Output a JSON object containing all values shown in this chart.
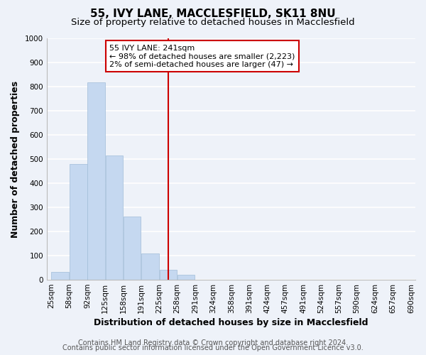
{
  "title": "55, IVY LANE, MACCLESFIELD, SK11 8NU",
  "subtitle": "Size of property relative to detached houses in Macclesfield",
  "xlabel": "Distribution of detached houses by size in Macclesfield",
  "ylabel": "Number of detached properties",
  "bar_edges": [
    25,
    58,
    92,
    125,
    158,
    191,
    225,
    258,
    291,
    324,
    358,
    391,
    424,
    457,
    491,
    524,
    557,
    590,
    624,
    657,
    690
  ],
  "bar_heights": [
    33,
    480,
    818,
    516,
    263,
    110,
    40,
    20,
    0,
    0,
    0,
    0,
    0,
    0,
    0,
    0,
    0,
    0,
    0,
    0
  ],
  "bar_color": "#c5d8f0",
  "bar_edge_color": "#a0bcd8",
  "vline_x": 241,
  "vline_color": "#cc0000",
  "annotation_title": "55 IVY LANE: 241sqm",
  "annotation_line1": "← 98% of detached houses are smaller (2,223)",
  "annotation_line2": "2% of semi-detached houses are larger (47) →",
  "ylim": [
    0,
    1000
  ],
  "yticks": [
    0,
    100,
    200,
    300,
    400,
    500,
    600,
    700,
    800,
    900,
    1000
  ],
  "tick_labels": [
    "25sqm",
    "58sqm",
    "92sqm",
    "125sqm",
    "158sqm",
    "191sqm",
    "225sqm",
    "258sqm",
    "291sqm",
    "324sqm",
    "358sqm",
    "391sqm",
    "424sqm",
    "457sqm",
    "491sqm",
    "524sqm",
    "557sqm",
    "590sqm",
    "624sqm",
    "657sqm",
    "690sqm"
  ],
  "footer1": "Contains HM Land Registry data © Crown copyright and database right 2024.",
  "footer2": "Contains public sector information licensed under the Open Government Licence v3.0.",
  "bg_color": "#eef2f9",
  "plot_bg_color": "#eef2f9",
  "grid_color": "#ffffff",
  "title_fontsize": 11,
  "subtitle_fontsize": 9.5,
  "axis_label_fontsize": 9,
  "tick_fontsize": 7.5,
  "footer_fontsize": 7
}
